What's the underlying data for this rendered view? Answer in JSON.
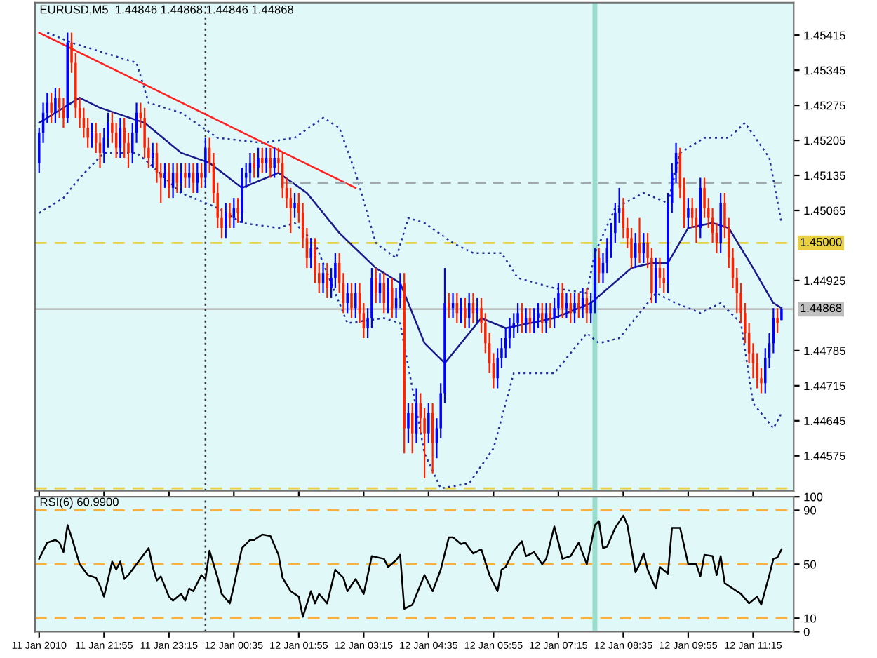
{
  "chart_data": [
    {
      "type": "candlestick",
      "title": "EURUSD,M5  1.44846 1.44868 1.44846 1.44868",
      "x": [
        "2010-01-11T20:35",
        "2010-01-11T20:40",
        "2010-01-11T20:45",
        "2010-01-11T20:50",
        "2010-01-11T20:55",
        "2010-01-11T21:00",
        "2010-01-11T21:05",
        "2010-01-11T21:10",
        "2010-01-11T21:15",
        "2010-01-11T21:20",
        "2010-01-11T21:25",
        "2010-01-11T21:30",
        "2010-01-11T21:35",
        "2010-01-11T21:40",
        "2010-01-11T21:45",
        "2010-01-11T21:50",
        "2010-01-11T21:55",
        "2010-01-11T22:00",
        "2010-01-11T22:05",
        "2010-01-11T22:10",
        "2010-01-11T22:15",
        "2010-01-11T22:20",
        "2010-01-11T22:25",
        "2010-01-11T22:30",
        "2010-01-11T22:35",
        "2010-01-11T22:40",
        "2010-01-11T22:45",
        "2010-01-11T22:50",
        "2010-01-11T22:55",
        "2010-01-11T23:00",
        "2010-01-11T23:05",
        "2010-01-11T23:10",
        "2010-01-11T23:15",
        "2010-01-11T23:20",
        "2010-01-11T23:25",
        "2010-01-11T23:30",
        "2010-01-11T23:35",
        "2010-01-11T23:40",
        "2010-01-11T23:45",
        "2010-01-11T23:50",
        "2010-01-11T23:55",
        "2010-01-12T00:00",
        "2010-01-12T00:05",
        "2010-01-12T00:10",
        "2010-01-12T00:15",
        "2010-01-12T00:20",
        "2010-01-12T00:25",
        "2010-01-12T00:30",
        "2010-01-12T00:35",
        "2010-01-12T00:40",
        "2010-01-12T00:45",
        "2010-01-12T00:50",
        "2010-01-12T00:55",
        "2010-01-12T01:00",
        "2010-01-12T01:05",
        "2010-01-12T01:10",
        "2010-01-12T01:15",
        "2010-01-12T01:20",
        "2010-01-12T01:25",
        "2010-01-12T01:30",
        "2010-01-12T01:35",
        "2010-01-12T01:40",
        "2010-01-12T01:45",
        "2010-01-12T01:50",
        "2010-01-12T01:55",
        "2010-01-12T02:00",
        "2010-01-12T02:05",
        "2010-01-12T02:10",
        "2010-01-12T02:15",
        "2010-01-12T02:20",
        "2010-01-12T02:25",
        "2010-01-12T02:30",
        "2010-01-12T02:35",
        "2010-01-12T02:40",
        "2010-01-12T02:45",
        "2010-01-12T02:50",
        "2010-01-12T02:55",
        "2010-01-12T03:00",
        "2010-01-12T03:05",
        "2010-01-12T03:10",
        "2010-01-12T03:15",
        "2010-01-12T03:20",
        "2010-01-12T03:25",
        "2010-01-12T03:30",
        "2010-01-12T03:35",
        "2010-01-12T03:40",
        "2010-01-12T03:45",
        "2010-01-12T03:50",
        "2010-01-12T03:55",
        "2010-01-12T04:00",
        "2010-01-12T04:05",
        "2010-01-12T04:10",
        "2010-01-12T04:15",
        "2010-01-12T04:20",
        "2010-01-12T04:25",
        "2010-01-12T04:30",
        "2010-01-12T04:35",
        "2010-01-12T04:40",
        "2010-01-12T04:45",
        "2010-01-12T04:50",
        "2010-01-12T04:55",
        "2010-01-12T05:00",
        "2010-01-12T05:05",
        "2010-01-12T05:10",
        "2010-01-12T05:15",
        "2010-01-12T05:20",
        "2010-01-12T05:25",
        "2010-01-12T05:30",
        "2010-01-12T05:35",
        "2010-01-12T05:40",
        "2010-01-12T05:45",
        "2010-01-12T05:50",
        "2010-01-12T05:55",
        "2010-01-12T06:00",
        "2010-01-12T06:05",
        "2010-01-12T06:10",
        "2010-01-12T06:15",
        "2010-01-12T06:20",
        "2010-01-12T06:25",
        "2010-01-12T06:30",
        "2010-01-12T06:35",
        "2010-01-12T06:40",
        "2010-01-12T06:45",
        "2010-01-12T06:50",
        "2010-01-12T06:55",
        "2010-01-12T07:00",
        "2010-01-12T07:05",
        "2010-01-12T07:10",
        "2010-01-12T07:15",
        "2010-01-12T07:20",
        "2010-01-12T07:25",
        "2010-01-12T07:30",
        "2010-01-12T07:35",
        "2010-01-12T07:40",
        "2010-01-12T07:45",
        "2010-01-12T07:50",
        "2010-01-12T07:55",
        "2010-01-12T08:00",
        "2010-01-12T08:05",
        "2010-01-12T08:10",
        "2010-01-12T08:15",
        "2010-01-12T08:20",
        "2010-01-12T08:25",
        "2010-01-12T08:30",
        "2010-01-12T08:35",
        "2010-01-12T08:40",
        "2010-01-12T08:45",
        "2010-01-12T08:50",
        "2010-01-12T08:55",
        "2010-01-12T09:00",
        "2010-01-12T09:05",
        "2010-01-12T09:10",
        "2010-01-12T09:15",
        "2010-01-12T09:20",
        "2010-01-12T09:25",
        "2010-01-12T09:30",
        "2010-01-12T09:35",
        "2010-01-12T09:40",
        "2010-01-12T09:45",
        "2010-01-12T09:50",
        "2010-01-12T09:55",
        "2010-01-12T10:00",
        "2010-01-12T10:05",
        "2010-01-12T10:10",
        "2010-01-12T10:15",
        "2010-01-12T10:20",
        "2010-01-12T10:25",
        "2010-01-12T10:30",
        "2010-01-12T10:35",
        "2010-01-12T10:40",
        "2010-01-12T10:45",
        "2010-01-12T10:50",
        "2010-01-12T10:55",
        "2010-01-12T11:00",
        "2010-01-12T11:05",
        "2010-01-12T11:10",
        "2010-01-12T11:15",
        "2010-01-12T11:20",
        "2010-01-12T11:25",
        "2010-01-12T11:30",
        "2010-01-12T11:35",
        "2010-01-12T11:40",
        "2010-01-12T11:45",
        "2010-01-12T11:50"
      ],
      "ohlc": [
        [
          1.4516,
          1.4523,
          1.4514,
          1.4522
        ],
        [
          1.4522,
          1.4528,
          1.452,
          1.4526
        ],
        [
          1.4526,
          1.453,
          1.4524,
          1.4528
        ],
        [
          1.4528,
          1.453,
          1.4524,
          1.4526
        ],
        [
          1.4526,
          1.4531,
          1.4524,
          1.4529
        ],
        [
          1.4529,
          1.4531,
          1.4525,
          1.4527
        ],
        [
          1.4527,
          1.4529,
          1.4523,
          1.4525
        ],
        [
          1.4525,
          1.4542,
          1.4524,
          1.454
        ],
        [
          1.454,
          1.4542,
          1.4534,
          1.4536
        ],
        [
          1.4536,
          1.4538,
          1.4525,
          1.4527
        ],
        [
          1.4527,
          1.4529,
          1.4523,
          1.4525
        ],
        [
          1.4525,
          1.4527,
          1.4521,
          1.4523
        ],
        [
          1.4523,
          1.4525,
          1.4519,
          1.4521
        ],
        [
          1.4521,
          1.4524,
          1.4519,
          1.4522
        ],
        [
          1.4522,
          1.4524,
          1.4518,
          1.452
        ],
        [
          1.452,
          1.4522,
          1.4515,
          1.4518
        ],
        [
          1.4518,
          1.4523,
          1.4516,
          1.4521
        ],
        [
          1.4521,
          1.4526,
          1.4519,
          1.4524
        ],
        [
          1.4524,
          1.4526,
          1.452,
          1.4522
        ],
        [
          1.4522,
          1.4524,
          1.4517,
          1.4519
        ],
        [
          1.4519,
          1.4525,
          1.4517,
          1.4523
        ],
        [
          1.4523,
          1.4525,
          1.4517,
          1.452
        ],
        [
          1.452,
          1.4522,
          1.4515,
          1.4518
        ],
        [
          1.4518,
          1.4524,
          1.4516,
          1.4522
        ],
        [
          1.4522,
          1.4528,
          1.452,
          1.4526
        ],
        [
          1.4526,
          1.4528,
          1.4523,
          1.4525
        ],
        [
          1.4525,
          1.4527,
          1.4517,
          1.4519
        ],
        [
          1.4519,
          1.4521,
          1.4515,
          1.4517
        ],
        [
          1.4517,
          1.452,
          1.4515,
          1.4518
        ],
        [
          1.4518,
          1.452,
          1.4512,
          1.4514
        ],
        [
          1.4514,
          1.4516,
          1.4508,
          1.4513
        ],
        [
          1.4513,
          1.4516,
          1.4511,
          1.4514
        ],
        [
          1.4514,
          1.4516,
          1.4509,
          1.4511
        ],
        [
          1.4511,
          1.4516,
          1.4509,
          1.4514
        ],
        [
          1.4514,
          1.4516,
          1.451,
          1.4512
        ],
        [
          1.4512,
          1.4516,
          1.451,
          1.4514
        ],
        [
          1.4514,
          1.4516,
          1.4511,
          1.4513
        ],
        [
          1.4513,
          1.4516,
          1.4511,
          1.4514
        ],
        [
          1.4514,
          1.4516,
          1.451,
          1.4512
        ],
        [
          1.4512,
          1.4516,
          1.451,
          1.4514
        ],
        [
          1.4514,
          1.4516,
          1.4511,
          1.4513
        ],
        [
          1.4513,
          1.4521,
          1.4511,
          1.4519
        ],
        [
          1.4519,
          1.4521,
          1.4514,
          1.4516
        ],
        [
          1.4516,
          1.4518,
          1.4508,
          1.451
        ],
        [
          1.451,
          1.4512,
          1.4503,
          1.4505
        ],
        [
          1.4505,
          1.4507,
          1.4501,
          1.4503
        ],
        [
          1.4503,
          1.4508,
          1.4501,
          1.4506
        ],
        [
          1.4506,
          1.4508,
          1.4503,
          1.4505
        ],
        [
          1.4505,
          1.4509,
          1.4503,
          1.4507
        ],
        [
          1.4507,
          1.4509,
          1.4504,
          1.4506
        ],
        [
          1.4506,
          1.4515,
          1.4504,
          1.4513
        ],
        [
          1.4513,
          1.4516,
          1.4511,
          1.4514
        ],
        [
          1.4514,
          1.4518,
          1.4512,
          1.4516
        ],
        [
          1.4516,
          1.4518,
          1.4513,
          1.4515
        ],
        [
          1.4515,
          1.4519,
          1.4513,
          1.4517
        ],
        [
          1.4517,
          1.4519,
          1.4514,
          1.4516
        ],
        [
          1.4516,
          1.4519,
          1.4514,
          1.4517
        ],
        [
          1.4517,
          1.4519,
          1.4513,
          1.4515
        ],
        [
          1.4515,
          1.4519,
          1.4513,
          1.4517
        ],
        [
          1.4517,
          1.4519,
          1.4514,
          1.4516
        ],
        [
          1.4516,
          1.4518,
          1.4509,
          1.4511
        ],
        [
          1.4511,
          1.4513,
          1.4507,
          1.4509
        ],
        [
          1.4509,
          1.4511,
          1.4502,
          1.4507
        ],
        [
          1.4507,
          1.451,
          1.4505,
          1.4508
        ],
        [
          1.4508,
          1.451,
          1.4504,
          1.4506
        ],
        [
          1.4506,
          1.4508,
          1.4499,
          1.4501
        ],
        [
          1.4501,
          1.4503,
          1.4495,
          1.4497
        ],
        [
          1.4497,
          1.4501,
          1.4495,
          1.4499
        ],
        [
          1.4499,
          1.4501,
          1.4492,
          1.4494
        ],
        [
          1.4494,
          1.4496,
          1.449,
          1.4492
        ],
        [
          1.4492,
          1.4496,
          1.449,
          1.4494
        ],
        [
          1.4494,
          1.4496,
          1.4489,
          1.4491
        ],
        [
          1.4491,
          1.4495,
          1.4489,
          1.4493
        ],
        [
          1.4493,
          1.4498,
          1.4491,
          1.4496
        ],
        [
          1.4496,
          1.4498,
          1.449,
          1.4492
        ],
        [
          1.4492,
          1.4494,
          1.4486,
          1.4488
        ],
        [
          1.4488,
          1.4492,
          1.4486,
          1.449
        ],
        [
          1.449,
          1.4492,
          1.4485,
          1.4487
        ],
        [
          1.4487,
          1.4492,
          1.4485,
          1.449
        ],
        [
          1.449,
          1.4492,
          1.4484,
          1.4486
        ],
        [
          1.4486,
          1.4488,
          1.4481,
          1.4483
        ],
        [
          1.4483,
          1.4487,
          1.4481,
          1.4485
        ],
        [
          1.4485,
          1.4495,
          1.4483,
          1.4493
        ],
        [
          1.4493,
          1.4495,
          1.4488,
          1.449
        ],
        [
          1.449,
          1.4494,
          1.4488,
          1.4492
        ],
        [
          1.4492,
          1.4494,
          1.4486,
          1.4488
        ],
        [
          1.4488,
          1.4493,
          1.4486,
          1.4491
        ],
        [
          1.4491,
          1.4493,
          1.4485,
          1.4487
        ],
        [
          1.4487,
          1.4491,
          1.4485,
          1.4489
        ],
        [
          1.4489,
          1.4494,
          1.4487,
          1.4492
        ],
        [
          1.4492,
          1.4494,
          1.4458,
          1.4463
        ],
        [
          1.4463,
          1.4468,
          1.446,
          1.4466
        ],
        [
          1.4466,
          1.4468,
          1.4458,
          1.4462
        ],
        [
          1.4462,
          1.4471,
          1.446,
          1.4468
        ],
        [
          1.4468,
          1.447,
          1.4462,
          1.4465
        ],
        [
          1.4465,
          1.4467,
          1.4453,
          1.4462
        ],
        [
          1.4462,
          1.4468,
          1.446,
          1.4466
        ],
        [
          1.4466,
          1.4468,
          1.4454,
          1.446
        ],
        [
          1.446,
          1.4465,
          1.4457,
          1.4463
        ],
        [
          1.4463,
          1.4472,
          1.4461,
          1.447
        ],
        [
          1.447,
          1.4495,
          1.4468,
          1.4488
        ],
        [
          1.4488,
          1.449,
          1.4485,
          1.4487
        ],
        [
          1.4487,
          1.449,
          1.4485,
          1.4488
        ],
        [
          1.4488,
          1.449,
          1.4484,
          1.4486
        ],
        [
          1.4486,
          1.4489,
          1.4484,
          1.4487
        ],
        [
          1.4487,
          1.4489,
          1.4483,
          1.4485
        ],
        [
          1.4485,
          1.449,
          1.4483,
          1.4488
        ],
        [
          1.4488,
          1.449,
          1.4484,
          1.4486
        ],
        [
          1.4486,
          1.4489,
          1.4484,
          1.4487
        ],
        [
          1.4487,
          1.4489,
          1.4482,
          1.4484
        ],
        [
          1.4484,
          1.4486,
          1.4478,
          1.448
        ],
        [
          1.448,
          1.4482,
          1.4474,
          1.4476
        ],
        [
          1.4476,
          1.4478,
          1.4471,
          1.4473
        ],
        [
          1.4473,
          1.4479,
          1.4471,
          1.4477
        ],
        [
          1.4477,
          1.4481,
          1.4475,
          1.4479
        ],
        [
          1.4479,
          1.4483,
          1.4477,
          1.4481
        ],
        [
          1.4481,
          1.4485,
          1.4479,
          1.4483
        ],
        [
          1.4483,
          1.4486,
          1.4481,
          1.4484
        ],
        [
          1.4484,
          1.4488,
          1.4482,
          1.4486
        ],
        [
          1.4486,
          1.4488,
          1.4482,
          1.4484
        ],
        [
          1.4484,
          1.4487,
          1.4482,
          1.4485
        ],
        [
          1.4485,
          1.4487,
          1.4482,
          1.4484
        ],
        [
          1.4484,
          1.4487,
          1.4482,
          1.4485
        ],
        [
          1.4485,
          1.4488,
          1.4483,
          1.4486
        ],
        [
          1.4486,
          1.4488,
          1.4482,
          1.4484
        ],
        [
          1.4484,
          1.4488,
          1.4482,
          1.4486
        ],
        [
          1.4486,
          1.4488,
          1.4483,
          1.4485
        ],
        [
          1.4485,
          1.4489,
          1.4483,
          1.4487
        ],
        [
          1.4487,
          1.4492,
          1.4485,
          1.449
        ],
        [
          1.449,
          1.4492,
          1.4485,
          1.4487
        ],
        [
          1.4487,
          1.449,
          1.4485,
          1.4488
        ],
        [
          1.4488,
          1.449,
          1.4484,
          1.4486
        ],
        [
          1.4486,
          1.449,
          1.4484,
          1.4488
        ],
        [
          1.4488,
          1.449,
          1.4485,
          1.4487
        ],
        [
          1.4487,
          1.4491,
          1.4485,
          1.4489
        ],
        [
          1.4489,
          1.4491,
          1.4484,
          1.4486
        ],
        [
          1.4486,
          1.449,
          1.4484,
          1.4488
        ],
        [
          1.4488,
          1.4499,
          1.4486,
          1.4497
        ],
        [
          1.4497,
          1.4499,
          1.4492,
          1.4494
        ],
        [
          1.4494,
          1.4498,
          1.4492,
          1.4496
        ],
        [
          1.4496,
          1.4501,
          1.4494,
          1.4499
        ],
        [
          1.4499,
          1.4504,
          1.4497,
          1.4502
        ],
        [
          1.4502,
          1.4508,
          1.45,
          1.4506
        ],
        [
          1.4506,
          1.4511,
          1.4504,
          1.4507
        ],
        [
          1.4507,
          1.4509,
          1.4501,
          1.4503
        ],
        [
          1.4503,
          1.4505,
          1.4499,
          1.4501
        ],
        [
          1.4501,
          1.4503,
          1.4495,
          1.4497
        ],
        [
          1.4497,
          1.4502,
          1.4495,
          1.45
        ],
        [
          1.45,
          1.4505,
          1.4496,
          1.4498
        ],
        [
          1.4498,
          1.4502,
          1.4496,
          1.45
        ],
        [
          1.45,
          1.4502,
          1.4495,
          1.4497
        ],
        [
          1.4497,
          1.4499,
          1.4488,
          1.449
        ],
        [
          1.449,
          1.4497,
          1.4488,
          1.4495
        ],
        [
          1.4495,
          1.4497,
          1.4491,
          1.4493
        ],
        [
          1.4493,
          1.4495,
          1.449,
          1.4492
        ],
        [
          1.4492,
          1.451,
          1.449,
          1.4508
        ],
        [
          1.4508,
          1.4516,
          1.4506,
          1.4514
        ],
        [
          1.4514,
          1.452,
          1.4512,
          1.4518
        ],
        [
          1.4518,
          1.4519,
          1.4509,
          1.4511
        ],
        [
          1.4511,
          1.4513,
          1.4503,
          1.4505
        ],
        [
          1.4505,
          1.4509,
          1.4503,
          1.4507
        ],
        [
          1.4507,
          1.4509,
          1.4503,
          1.4505
        ],
        [
          1.4505,
          1.4507,
          1.45,
          1.4503
        ],
        [
          1.4503,
          1.4513,
          1.4501,
          1.4511
        ],
        [
          1.4511,
          1.4513,
          1.4505,
          1.4507
        ],
        [
          1.4507,
          1.4509,
          1.4503,
          1.4505
        ],
        [
          1.4505,
          1.4507,
          1.45,
          1.4502
        ],
        [
          1.4502,
          1.4504,
          1.4498,
          1.45
        ],
        [
          1.45,
          1.451,
          1.4498,
          1.4508
        ],
        [
          1.4508,
          1.451,
          1.4501,
          1.4503
        ],
        [
          1.4503,
          1.4505,
          1.4495,
          1.4497
        ],
        [
          1.4497,
          1.4499,
          1.4491,
          1.4493
        ],
        [
          1.4493,
          1.4495,
          1.4486,
          1.449
        ],
        [
          1.449,
          1.4492,
          1.4484,
          1.4486
        ],
        [
          1.4486,
          1.4488,
          1.448,
          1.4482
        ],
        [
          1.4482,
          1.4484,
          1.4476,
          1.4478
        ],
        [
          1.4478,
          1.448,
          1.4473,
          1.4476
        ],
        [
          1.4476,
          1.4478,
          1.4471,
          1.4473
        ],
        [
          1.4473,
          1.4475,
          1.447,
          1.4472
        ],
        [
          1.4472,
          1.4479,
          1.447,
          1.4477
        ],
        [
          1.4477,
          1.4482,
          1.4475,
          1.448
        ],
        [
          1.448,
          1.4487,
          1.4478,
          1.4485
        ],
        [
          1.4485,
          1.4487,
          1.4482,
          1.4484
        ],
        [
          1.44846,
          1.44868,
          1.44846,
          1.44868
        ]
      ],
      "series": [
        {
          "type": "line",
          "color": "#1a1a8c",
          "line_style": "solid",
          "x": [
            "2010-01-11T20:35",
            "2010-01-11T21:25",
            "2010-01-11T21:50",
            "2010-01-11T22:45",
            "2010-01-11T23:30",
            "2010-01-12T00:05",
            "2010-01-12T00:45",
            "2010-01-12T01:30",
            "2010-01-12T02:05",
            "2010-01-12T02:45",
            "2010-01-12T03:30",
            "2010-01-12T04:00",
            "2010-01-12T04:30",
            "2010-01-12T04:55",
            "2010-01-12T05:40",
            "2010-01-12T06:10",
            "2010-01-12T07:10",
            "2010-01-12T07:55",
            "2010-01-12T08:45",
            "2010-01-12T09:10",
            "2010-01-12T09:30",
            "2010-01-12T09:55",
            "2010-01-12T10:25",
            "2010-01-12T10:45",
            "2010-01-12T11:15",
            "2010-01-12T11:40",
            "2010-01-12T11:50"
          ],
          "values": [
            1.4524,
            1.4529,
            1.4527,
            1.4524,
            1.4518,
            1.4516,
            1.4511,
            1.4514,
            1.451,
            1.4502,
            1.4495,
            1.4492,
            1.448,
            1.4476,
            1.4485,
            1.4483,
            1.4485,
            1.4488,
            1.4495,
            1.4496,
            1.4496,
            1.4503,
            1.4504,
            1.4503,
            1.4495,
            1.4488,
            1.4487
          ]
        },
        {
          "type": "line",
          "color": "#2030a0",
          "line_style": "dotted",
          "x": [
            "2010-01-11T20:45",
            "2010-01-11T21:15",
            "2010-01-11T22:35",
            "2010-01-11T22:50",
            "2010-01-11T23:30",
            "2010-01-12T00:15",
            "2010-01-12T01:10",
            "2010-01-12T01:50",
            "2010-01-12T02:25",
            "2010-01-12T02:45",
            "2010-01-12T03:05",
            "2010-01-12T03:30",
            "2010-01-12T03:55",
            "2010-01-12T04:10",
            "2010-01-12T04:30",
            "2010-01-12T05:05",
            "2010-01-12T05:30",
            "2010-01-12T06:05",
            "2010-01-12T06:25",
            "2010-01-12T07:10",
            "2010-01-12T07:50",
            "2010-01-12T08:00",
            "2010-01-12T08:25",
            "2010-01-12T09:00",
            "2010-01-12T09:30",
            "2010-01-12T09:45",
            "2010-01-12T10:15",
            "2010-01-12T10:45",
            "2010-01-12T11:05",
            "2010-01-12T11:35",
            "2010-01-12T11:50"
          ],
          "values": [
            1.4542,
            1.454,
            1.4536,
            1.4528,
            1.4526,
            1.4521,
            1.452,
            1.4521,
            1.4525,
            1.4523,
            1.4514,
            1.45,
            1.4497,
            1.4505,
            1.4504,
            1.45,
            1.4498,
            1.4498,
            1.4493,
            1.4491,
            1.449,
            1.4498,
            1.4507,
            1.451,
            1.4508,
            1.4518,
            1.4521,
            1.4521,
            1.4524,
            1.4517,
            1.4504
          ]
        },
        {
          "type": "line",
          "color": "#2030a0",
          "line_style": "dotted",
          "x": [
            "2010-01-11T20:35",
            "2010-01-11T21:05",
            "2010-01-11T21:25",
            "2010-01-11T21:55",
            "2010-01-11T22:35",
            "2010-01-11T22:50",
            "2010-01-11T23:30",
            "2010-01-12T00:15",
            "2010-01-12T00:45",
            "2010-01-12T01:30",
            "2010-01-12T01:50",
            "2010-01-12T02:15",
            "2010-01-12T02:55",
            "2010-01-12T03:40",
            "2010-01-12T04:00",
            "2010-01-12T04:30",
            "2010-01-12T04:50",
            "2010-01-12T05:25",
            "2010-01-12T05:55",
            "2010-01-12T06:20",
            "2010-01-12T07:10",
            "2010-01-12T07:50",
            "2010-01-12T08:05",
            "2010-01-12T08:30",
            "2010-01-12T09:15",
            "2010-01-12T09:40",
            "2010-01-12T10:10",
            "2010-01-12T10:35",
            "2010-01-12T11:00",
            "2010-01-12T11:15",
            "2010-01-12T11:40",
            "2010-01-12T11:50"
          ],
          "values": [
            1.4506,
            1.4509,
            1.4513,
            1.4518,
            1.4518,
            1.4516,
            1.451,
            1.4507,
            1.4504,
            1.4503,
            1.4504,
            1.45,
            1.4484,
            1.4485,
            1.4484,
            1.4458,
            1.4451,
            1.4452,
            1.4459,
            1.4474,
            1.4474,
            1.4482,
            1.448,
            1.4481,
            1.449,
            1.4488,
            1.4486,
            1.4488,
            1.4484,
            1.4468,
            1.4463,
            1.4466
          ]
        },
        {
          "type": "line",
          "color": "#ff2020",
          "line_style": "solid",
          "x": [
            "2010-01-11T20:35",
            "2010-01-12T03:05"
          ],
          "values": [
            1.4542,
            1.4511
          ]
        },
        {
          "type": "line",
          "color": "#a0a8b0",
          "line_style": "dashed",
          "x": [
            "2010-01-12T01:35",
            "2010-01-12T11:50"
          ],
          "values": [
            1.4512,
            1.4512
          ]
        }
      ],
      "xlim": [
        "2010-01-11T20:30",
        "2010-01-12T12:05"
      ],
      "xticks": [
        {
          "value": "2010-01-11T20:35",
          "label": null
        },
        {
          "value": "2010-01-11T21:55",
          "label": null
        },
        {
          "value": "2010-01-11T23:15",
          "label": null
        },
        {
          "value": "2010-01-12T00:35",
          "label": null
        },
        {
          "value": "2010-01-12T01:55",
          "label": null
        },
        {
          "value": "2010-01-12T03:15",
          "label": null
        },
        {
          "value": "2010-01-12T04:35",
          "label": null
        },
        {
          "value": "2010-01-12T05:55",
          "label": null
        },
        {
          "value": "2010-01-12T07:15",
          "label": null
        },
        {
          "value": "2010-01-12T08:35",
          "label": null
        },
        {
          "value": "2010-01-12T09:55",
          "label": null
        },
        {
          "value": "2010-01-12T11:15",
          "label": null
        }
      ],
      "ylim": [
        1.44505,
        1.4548
      ],
      "yticks": [
        1.44575,
        1.44645,
        1.44715,
        1.44785,
        1.44925,
        1.45065,
        1.45135,
        1.45205,
        1.45275,
        1.45345,
        1.45415
      ],
      "tick_labels": "y",
      "ref_lines": [
        {
          "axis": "y",
          "value": 1.45,
          "label": "1.45000",
          "color": "#e8d040",
          "line_style": "dashed"
        },
        {
          "axis": "y",
          "value": 1.44868,
          "label": "1.44868",
          "color": "#c0c0c0",
          "line_style": "solid"
        },
        {
          "axis": "y",
          "value": 1.4451,
          "color": "#e8d040",
          "line_style": "dashed"
        },
        {
          "axis": "x",
          "value": "2010-01-12T00:00",
          "color": "#303030",
          "line_style": "dotted"
        },
        {
          "axis": "x",
          "value": "2010-01-12T08:00",
          "color": "#99ddcc",
          "line_style": "solid"
        }
      ]
    },
    {
      "type": "line",
      "title": "RSI(6) 60.9900",
      "series": [
        {
          "color": "#000000",
          "x": [
            "2010-01-11T20:35",
            "2010-01-11T20:45",
            "2010-01-11T20:55",
            "2010-01-11T21:00",
            "2010-01-11T21:05",
            "2010-01-11T21:10",
            "2010-01-11T21:15",
            "2010-01-11T21:25",
            "2010-01-11T21:35",
            "2010-01-11T21:45",
            "2010-01-11T21:50",
            "2010-01-11T21:55",
            "2010-01-11T22:05",
            "2010-01-11T22:10",
            "2010-01-11T22:15",
            "2010-01-11T22:20",
            "2010-01-11T22:25",
            "2010-01-11T22:35",
            "2010-01-11T22:50",
            "2010-01-11T22:55",
            "2010-01-11T23:00",
            "2010-01-11T23:05",
            "2010-01-11T23:15",
            "2010-01-11T23:20",
            "2010-01-11T23:30",
            "2010-01-11T23:35",
            "2010-01-11T23:40",
            "2010-01-11T23:45",
            "2010-01-11T23:55",
            "2010-01-12T00:00",
            "2010-01-12T00:05",
            "2010-01-12T00:15",
            "2010-01-12T00:20",
            "2010-01-12T00:30",
            "2010-01-12T00:35",
            "2010-01-12T00:45",
            "2010-01-12T00:55",
            "2010-01-12T01:00",
            "2010-01-12T01:10",
            "2010-01-12T01:20",
            "2010-01-12T01:30",
            "2010-01-12T01:35",
            "2010-01-12T01:45",
            "2010-01-12T01:55",
            "2010-01-12T02:00",
            "2010-01-12T02:10",
            "2010-01-12T02:15",
            "2010-01-12T02:20",
            "2010-01-12T02:30",
            "2010-01-12T02:40",
            "2010-01-12T02:50",
            "2010-01-12T02:55",
            "2010-01-12T03:05",
            "2010-01-12T03:15",
            "2010-01-12T03:25",
            "2010-01-12T03:40",
            "2010-01-12T03:45",
            "2010-01-12T03:55",
            "2010-01-12T04:00",
            "2010-01-12T04:05",
            "2010-01-12T04:15",
            "2010-01-12T04:30",
            "2010-01-12T04:40",
            "2010-01-12T04:50",
            "2010-01-12T05:00",
            "2010-01-12T05:05",
            "2010-01-12T05:15",
            "2010-01-12T05:20",
            "2010-01-12T05:30",
            "2010-01-12T05:40",
            "2010-01-12T05:50",
            "2010-01-12T06:00",
            "2010-01-12T06:05",
            "2010-01-12T06:10",
            "2010-01-12T06:20",
            "2010-01-12T06:30",
            "2010-01-12T06:35",
            "2010-01-12T06:45",
            "2010-01-12T06:55",
            "2010-01-12T07:00",
            "2010-01-12T07:10",
            "2010-01-12T07:20",
            "2010-01-12T07:30",
            "2010-01-12T07:40",
            "2010-01-12T07:50",
            "2010-01-12T08:00",
            "2010-01-12T08:05",
            "2010-01-12T08:10",
            "2010-01-12T08:15",
            "2010-01-12T08:25",
            "2010-01-12T08:35",
            "2010-01-12T08:40",
            "2010-01-12T08:50",
            "2010-01-12T08:55",
            "2010-01-12T09:00",
            "2010-01-12T09:05",
            "2010-01-12T09:15",
            "2010-01-12T09:20",
            "2010-01-12T09:30",
            "2010-01-12T09:35",
            "2010-01-12T09:45",
            "2010-01-12T09:55",
            "2010-01-12T10:05",
            "2010-01-12T10:10",
            "2010-01-12T10:15",
            "2010-01-12T10:25",
            "2010-01-12T10:30",
            "2010-01-12T10:35",
            "2010-01-12T10:40",
            "2010-01-12T10:50",
            "2010-01-12T11:00",
            "2010-01-12T11:10",
            "2010-01-12T11:20",
            "2010-01-12T11:25",
            "2010-01-12T11:35",
            "2010-01-12T11:40",
            "2010-01-12T11:45",
            "2010-01-12T11:50"
          ],
          "values": [
            54,
            66,
            68,
            66,
            59,
            79,
            70,
            50,
            42,
            40,
            34,
            26,
            52,
            46,
            52,
            39,
            42,
            50,
            62,
            48,
            38,
            41,
            26,
            23,
            28,
            23,
            32,
            30,
            42,
            39,
            60,
            40,
            28,
            21,
            34,
            62,
            68,
            68,
            72,
            71,
            57,
            40,
            30,
            26,
            11,
            30,
            21,
            28,
            21,
            46,
            40,
            30,
            39,
            28,
            56,
            54,
            48,
            53,
            57,
            17,
            20,
            42,
            30,
            46,
            70,
            70,
            65,
            66,
            58,
            61,
            42,
            30,
            46,
            48,
            60,
            67,
            56,
            59,
            50,
            54,
            78,
            54,
            56,
            66,
            50,
            79,
            82,
            62,
            63,
            77,
            86,
            79,
            44,
            50,
            58,
            46,
            32,
            48,
            43,
            77,
            77,
            50,
            50,
            41,
            57,
            56,
            42,
            56,
            36,
            32,
            28,
            21,
            26,
            20,
            42,
            54,
            55,
            60.99
          ]
        }
      ],
      "xlim": [
        "2010-01-11T20:30",
        "2010-01-12T12:05"
      ],
      "xticks": [
        {
          "value": "2010-01-11T20:35",
          "label": "11 Jan 2010"
        },
        {
          "value": "2010-01-11T21:55",
          "label": "11 Jan 21:55"
        },
        {
          "value": "2010-01-11T23:15",
          "label": "11 Jan 23:15"
        },
        {
          "value": "2010-01-12T00:35",
          "label": "12 Jan 00:35"
        },
        {
          "value": "2010-01-12T01:55",
          "label": "12 Jan 01:55"
        },
        {
          "value": "2010-01-12T03:15",
          "label": "12 Jan 03:15"
        },
        {
          "value": "2010-01-12T04:35",
          "label": "12 Jan 04:35"
        },
        {
          "value": "2010-01-12T05:55",
          "label": "12 Jan 05:55"
        },
        {
          "value": "2010-01-12T07:15",
          "label": "12 Jan 07:15"
        },
        {
          "value": "2010-01-12T08:35",
          "label": "12 Jan 08:35"
        },
        {
          "value": "2010-01-12T09:55",
          "label": "12 Jan 09:55"
        },
        {
          "value": "2010-01-12T11:15",
          "label": "12 Jan 11:15"
        }
      ],
      "ylim": [
        0,
        100
      ],
      "yticks": [
        0,
        10,
        50,
        90,
        100
      ],
      "ref_lines": [
        {
          "axis": "y",
          "value": 90,
          "color": "#f5b040",
          "line_style": "dashed"
        },
        {
          "axis": "y",
          "value": 50,
          "color": "#f5b040",
          "line_style": "dashed"
        },
        {
          "axis": "y",
          "value": 10,
          "color": "#f5b040",
          "line_style": "dashed"
        },
        {
          "axis": "x",
          "value": "2010-01-12T00:00",
          "color": "#303030",
          "line_style": "dotted"
        },
        {
          "axis": "x",
          "value": "2010-01-12T08:00",
          "color": "#99ddcc",
          "line_style": "solid"
        }
      ]
    }
  ]
}
